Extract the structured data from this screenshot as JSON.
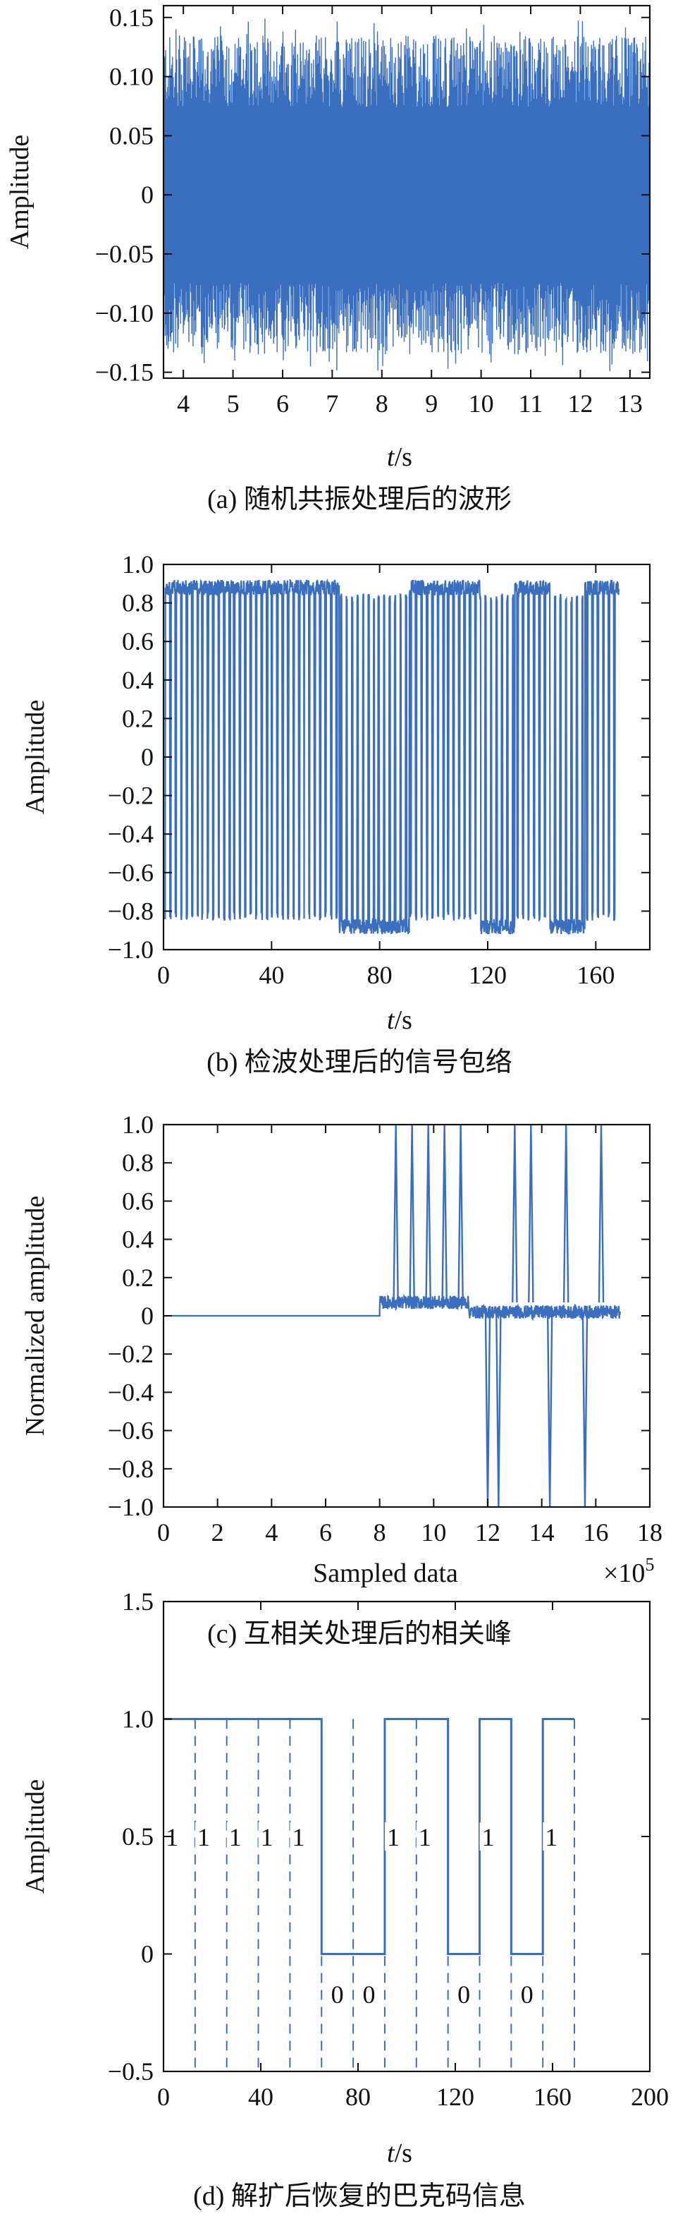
{
  "chart_data": [
    {
      "type": "line",
      "panel": "a",
      "caption": "(a) 随机共振处理后的波形",
      "xlabel_italic": "t",
      "xlabel_unit": "/s",
      "ylabel": "Amplitude",
      "xlim": [
        3.6,
        13.4
      ],
      "ylim": [
        -0.155,
        0.16
      ],
      "xticks": [
        4,
        5,
        6,
        7,
        8,
        9,
        10,
        11,
        12,
        13
      ],
      "yticks": [
        -0.15,
        -0.1,
        -0.05,
        0,
        0.05,
        0.1,
        0.15
      ],
      "ytick_labels": [
        "−0.15",
        "−0.10",
        "−0.05",
        "0",
        "0.05",
        "0.10",
        "0.15"
      ],
      "series": [
        {
          "envelope": [
            -0.135,
            0.135
          ],
          "peak_max": 0.15,
          "peak_min": -0.145
        }
      ],
      "color": "#3a6fbf"
    },
    {
      "type": "line",
      "panel": "b",
      "caption": "(b) 检波处理后的信号包络",
      "xlabel_italic": "t",
      "xlabel_unit": "/s",
      "ylabel": "Amplitude",
      "xlim": [
        0,
        180
      ],
      "ylim": [
        -1.0,
        1.0
      ],
      "xticks": [
        0,
        40,
        80,
        120,
        160
      ],
      "yticks": [
        -1.0,
        -0.8,
        -0.6,
        -0.4,
        -0.2,
        0,
        0.2,
        0.4,
        0.6,
        0.8,
        1.0
      ],
      "ytick_labels": [
        "−1.0",
        "−0.8",
        "−0.6",
        "−0.4",
        "−0.2",
        "0",
        "0.2",
        "0.4",
        "0.6",
        "0.8",
        "1.0"
      ],
      "series": [
        {
          "levels": [
            0.88,
            -0.88
          ],
          "pattern": "1111100110101"
        }
      ],
      "color": "#3a6fbf"
    },
    {
      "type": "line",
      "panel": "c",
      "caption": "(c) 互相关处理后的相关峰",
      "xlabel": "Sampled data",
      "xscale_label": "×10",
      "xscale_exp": "5",
      "ylabel": "Normalized amplitude",
      "xlim": [
        0,
        18
      ],
      "ylim": [
        -1.0,
        1.0
      ],
      "xticks": [
        0,
        2,
        4,
        6,
        8,
        10,
        12,
        14,
        16,
        18
      ],
      "yticks": [
        -1.0,
        -0.8,
        -0.6,
        -0.4,
        -0.2,
        0,
        0.2,
        0.4,
        0.6,
        0.8,
        1.0
      ],
      "ytick_labels": [
        "−1.0",
        "−0.8",
        "−0.6",
        "−0.4",
        "−0.2",
        "0",
        "0.2",
        "0.4",
        "0.6",
        "0.8",
        "1.0"
      ],
      "series": [
        {
          "flat_until": 8.0,
          "positive_peaks": [
            8.6,
            9.2,
            9.8,
            10.4,
            11.0,
            13.0,
            13.6,
            14.9,
            16.2
          ],
          "negative_peaks": [
            12.0,
            12.4,
            14.3,
            15.6
          ]
        }
      ],
      "color": "#3a6fbf"
    },
    {
      "type": "line",
      "panel": "d",
      "caption": "(d) 解扩后恢复的巴克码信息",
      "xlabel_italic": "t",
      "xlabel_unit": "/s",
      "ylabel": "Amplitude",
      "xlim": [
        0,
        200
      ],
      "ylim": [
        -0.5,
        1.5
      ],
      "xticks": [
        0,
        40,
        80,
        120,
        160,
        200
      ],
      "yticks": [
        -0.5,
        0,
        0.5,
        1.0,
        1.5
      ],
      "ytick_labels": [
        "−0.5",
        "0",
        "0.5",
        "1.0",
        "1.5"
      ],
      "series": [
        {
          "bits": [
            "1",
            "1",
            "1",
            "1",
            "1",
            "0",
            "0",
            "1",
            "1",
            "0",
            "1",
            "0",
            "1"
          ],
          "bit_duration": 13
        }
      ],
      "color": "#3a6fbf"
    }
  ]
}
